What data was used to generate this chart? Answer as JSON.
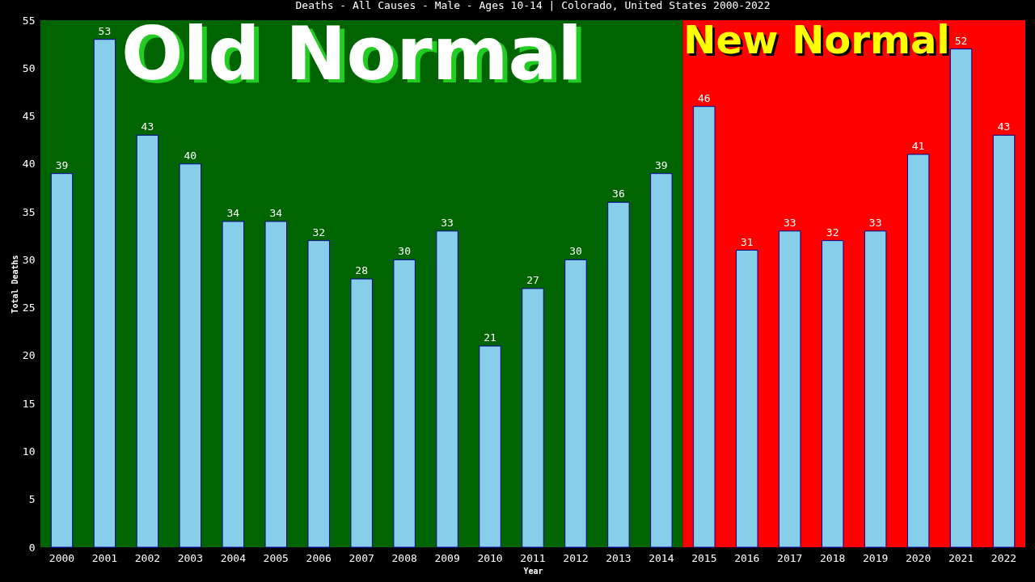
{
  "chart_data": {
    "type": "bar",
    "title": "Deaths - All Causes - Male - Ages 10-14 | Colorado, United States 2000-2022",
    "xlabel": "Year",
    "ylabel": "Total Deaths",
    "categories": [
      "2000",
      "2001",
      "2002",
      "2003",
      "2004",
      "2005",
      "2006",
      "2007",
      "2008",
      "2009",
      "2010",
      "2011",
      "2012",
      "2013",
      "2014",
      "2015",
      "2016",
      "2017",
      "2018",
      "2019",
      "2020",
      "2021",
      "2022"
    ],
    "values": [
      39,
      53,
      43,
      40,
      34,
      34,
      32,
      28,
      30,
      33,
      21,
      27,
      30,
      36,
      39,
      46,
      31,
      33,
      32,
      33,
      41,
      52,
      43
    ],
    "color": "#87ceeb",
    "ylim": [
      0,
      55
    ],
    "yticks": [
      0,
      5,
      10,
      15,
      20,
      25,
      30,
      35,
      40,
      45,
      50,
      55
    ],
    "grid": false,
    "data_labels": true,
    "bands": [
      {
        "axis": "x",
        "from": "2000",
        "to": "2014",
        "label": "Old Normal",
        "color": "#006400"
      },
      {
        "axis": "x",
        "from": "2015",
        "to": "2022",
        "label": "New Normal",
        "color": "#ff0000"
      }
    ]
  }
}
